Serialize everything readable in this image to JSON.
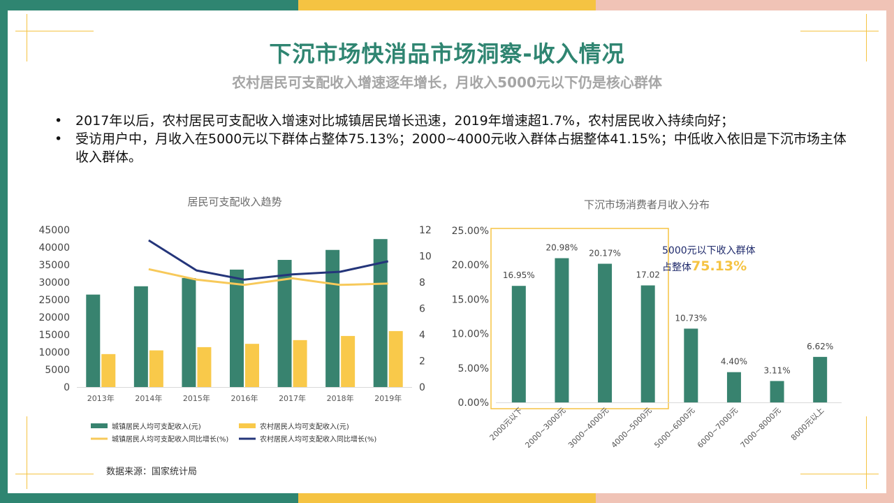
{
  "header": {
    "title": "下沉市场快消品市场洞察-收入情况",
    "subtitle": "农村居民可支配收入增速逐年增长，月收入5000元以下仍是核心群体"
  },
  "bullets": [
    "2017年以后，农村居民可支配收入增速对比城镇居民增长迅速，2019年增速超1.7%，农村居民收入持续向好；",
    "受访用户中，月收入在5000元以下群体占整体75.13%；2000~4000元收入群体占据整体41.15%；中低收入依旧是下沉市场主体收入群体。"
  ],
  "bullet_symbol": "•",
  "source": "数据来源：国家统计局",
  "colors": {
    "teal": "#38836f",
    "yellow": "#f9c94a",
    "navy": "#24357a",
    "lineYellow": "#f7c95a",
    "edgeGreen": "#2f8571",
    "edgeYellow": "#f5c342",
    "edgePink": "#f0c3b6"
  },
  "chart_data": [
    {
      "type": "bar+line",
      "title": "居民可支配收入趋势",
      "categories": [
        "2013年",
        "2014年",
        "2015年",
        "2016年",
        "2017年",
        "2018年",
        "2019年"
      ],
      "y_left_ticks": [
        "45000",
        "40000",
        "35000",
        "30000",
        "25000",
        "20000",
        "15000",
        "10000",
        "5000",
        "0"
      ],
      "y_right_ticks": [
        "12",
        "10",
        "8",
        "6",
        "4",
        "2",
        "0"
      ],
      "ylim_left": [
        0,
        45000
      ],
      "ylim_right": [
        0,
        12
      ],
      "series": [
        {
          "name": "城镇居民人均可支配收入(元)",
          "type": "bar",
          "axis": "left",
          "values": [
            26467,
            28844,
            31195,
            33616,
            36396,
            39251,
            42359
          ]
        },
        {
          "name": "农村居民人均可支配收入(元)",
          "type": "bar",
          "axis": "left",
          "values": [
            9430,
            10489,
            11422,
            12363,
            13432,
            14617,
            16021
          ]
        },
        {
          "name": "城镇居民人均可支配收入同比增长(%)",
          "type": "line",
          "axis": "right",
          "values": [
            null,
            9.0,
            8.2,
            7.8,
            8.3,
            7.8,
            7.9
          ]
        },
        {
          "name": "农村居民人均可支配收入同比增长(%)",
          "type": "line",
          "axis": "right",
          "values": [
            null,
            11.2,
            8.9,
            8.2,
            8.6,
            8.8,
            9.6
          ]
        }
      ]
    },
    {
      "type": "bar",
      "title": "下沉市场消费者月收入分布",
      "categories": [
        "2000元以下",
        "2000~3000元",
        "3000~4000元",
        "4000~5000元",
        "5000~6000元",
        "6000~7000元",
        "7000~8000元",
        "8000元以上"
      ],
      "values": [
        16.95,
        20.98,
        20.17,
        17.02,
        10.73,
        4.4,
        3.11,
        6.62
      ],
      "value_labels": [
        "16.95%",
        "20.98%",
        "20.17%",
        "17.02",
        "10.73%",
        "4.40%",
        "3.11%",
        "6.62%"
      ],
      "y_ticks": [
        "25.00%",
        "20.00%",
        "15.00%",
        "10.00%",
        "5.00%",
        "0.00%"
      ],
      "ylim": [
        0,
        25
      ],
      "annotation": {
        "line1": "5000元以下收入群体",
        "prefix": "占整体",
        "highlight": "75.13%"
      }
    }
  ]
}
